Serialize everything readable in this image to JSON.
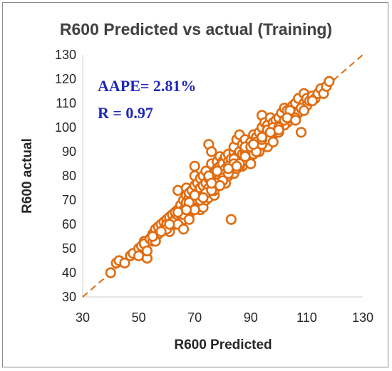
{
  "chart_data": {
    "type": "scatter",
    "title": "R600 Predicted vs actual (Training)",
    "xlabel": "R600 Predicted",
    "ylabel": "R600 actual",
    "xlim": [
      30,
      130
    ],
    "ylim": [
      30,
      130
    ],
    "xticks": [
      30,
      50,
      70,
      90,
      110,
      130
    ],
    "yticks": [
      30,
      40,
      50,
      60,
      70,
      80,
      90,
      100,
      110,
      120,
      130
    ],
    "grid": false,
    "legend": "none",
    "marker_color": "#e06c10",
    "reference_line": {
      "style": "dashed",
      "color": "#e06c10",
      "from": [
        30,
        30
      ],
      "to": [
        130,
        130
      ]
    },
    "annotations": [
      "AAPE= 2.81%",
      "R = 0.97"
    ],
    "annotation_color": "#1f27b8",
    "series": [
      {
        "x": [
          40,
          42,
          43,
          45,
          47,
          48,
          50,
          50,
          51,
          52,
          52,
          53,
          54,
          55,
          55,
          56,
          56,
          57,
          57,
          58,
          58,
          59,
          59,
          60,
          60,
          60,
          61,
          61,
          62,
          62,
          63,
          63,
          63,
          64,
          64,
          64,
          65,
          65,
          65,
          65,
          66,
          66,
          66,
          67,
          67,
          67,
          67,
          68,
          68,
          68,
          68,
          69,
          69,
          69,
          69,
          70,
          70,
          70,
          70,
          70,
          71,
          71,
          71,
          72,
          72,
          72,
          72,
          73,
          73,
          73,
          73,
          74,
          74,
          74,
          74,
          75,
          75,
          75,
          75,
          76,
          76,
          76,
          76,
          77,
          77,
          77,
          77,
          78,
          78,
          78,
          78,
          79,
          79,
          79,
          79,
          80,
          80,
          80,
          80,
          81,
          81,
          81,
          81,
          82,
          82,
          82,
          82,
          83,
          83,
          83,
          84,
          84,
          84,
          84,
          85,
          85,
          85,
          85,
          86,
          86,
          86,
          87,
          87,
          87,
          88,
          88,
          88,
          89,
          89,
          89,
          90,
          90,
          90,
          91,
          91,
          91,
          92,
          92,
          92,
          93,
          93,
          93,
          94,
          94,
          94,
          95,
          95,
          95,
          96,
          96,
          96,
          97,
          97,
          97,
          98,
          98,
          99,
          99,
          99,
          100,
          100,
          101,
          101,
          102,
          102,
          103,
          103,
          104,
          104,
          105,
          105,
          106,
          106,
          107,
          107,
          108,
          108,
          109,
          109,
          110,
          110,
          111,
          112,
          113,
          114,
          115,
          116,
          117,
          118,
          53,
          56,
          60,
          62,
          64,
          66,
          68,
          70,
          72,
          74,
          75,
          76,
          78,
          80,
          82,
          84,
          86,
          88,
          90,
          92,
          94,
          96,
          98,
          100,
          102,
          104,
          106,
          66,
          68,
          70,
          72,
          74,
          76,
          78,
          80,
          82,
          84,
          86,
          88,
          90,
          92,
          94,
          96,
          98,
          100,
          102,
          104,
          108,
          55,
          58,
          61,
          64,
          67,
          70,
          73,
          76,
          79,
          82,
          85,
          88,
          91,
          94,
          97,
          100,
          103,
          106,
          109,
          112
        ],
        "y": [
          40,
          44,
          45,
          44,
          47,
          48,
          50,
          47,
          51,
          53,
          52,
          46,
          54,
          56,
          53,
          55,
          58,
          56,
          59,
          57,
          60,
          58,
          61,
          59,
          62,
          60,
          57,
          63,
          61,
          64,
          60,
          65,
          62,
          63,
          66,
          74,
          61,
          65,
          68,
          64,
          62,
          70,
          66,
          67,
          72,
          69,
          75,
          64,
          68,
          71,
          73,
          70,
          66,
          74,
          68,
          72,
          76,
          69,
          80,
          84,
          73,
          70,
          77,
          71,
          75,
          79,
          66,
          72,
          76,
          80,
          67,
          73,
          77,
          82,
          70,
          71,
          75,
          93,
          79,
          74,
          78,
          90,
          85,
          72,
          77,
          81,
          74,
          78,
          83,
          86,
          76,
          80,
          84,
          88,
          79,
          82,
          86,
          78,
          85,
          77,
          83,
          88,
          81,
          86,
          80,
          84,
          89,
          62,
          82,
          87,
          90,
          85,
          92,
          81,
          88,
          83,
          87,
          95,
          97,
          86,
          90,
          84,
          89,
          93,
          87,
          91,
          95,
          88,
          92,
          86,
          90,
          94,
          88,
          93,
          97,
          89,
          91,
          96,
          94,
          92,
          98,
          90,
          95,
          100,
          105,
          93,
          97,
          102,
          92,
          96,
          101,
          95,
          99,
          104,
          97,
          102,
          98,
          103,
          100,
          99,
          104,
          101,
          106,
          103,
          108,
          102,
          107,
          104,
          105,
          109,
          107,
          103,
          110,
          106,
          112,
          108,
          98,
          110,
          114,
          109,
          112,
          111,
          113,
          112,
          114,
          116,
          114,
          117,
          119,
          49,
          53,
          58,
          61,
          60,
          64,
          69,
          72,
          70,
          73,
          80,
          74,
          82,
          79,
          81,
          87,
          84,
          89,
          85,
          91,
          93,
          95,
          94,
          98,
          101,
          105,
          104,
          58,
          62,
          66,
          70,
          73,
          74,
          77,
          78,
          84,
          85,
          85,
          92,
          92,
          90,
          95,
          99,
          100,
          100,
          103,
          107,
          108,
          55,
          57,
          60,
          65,
          66,
          72,
          71,
          77,
          76,
          83,
          84,
          88,
          93,
          96,
          98,
          99,
          104,
          103,
          107,
          111
        ]
      }
    ]
  }
}
